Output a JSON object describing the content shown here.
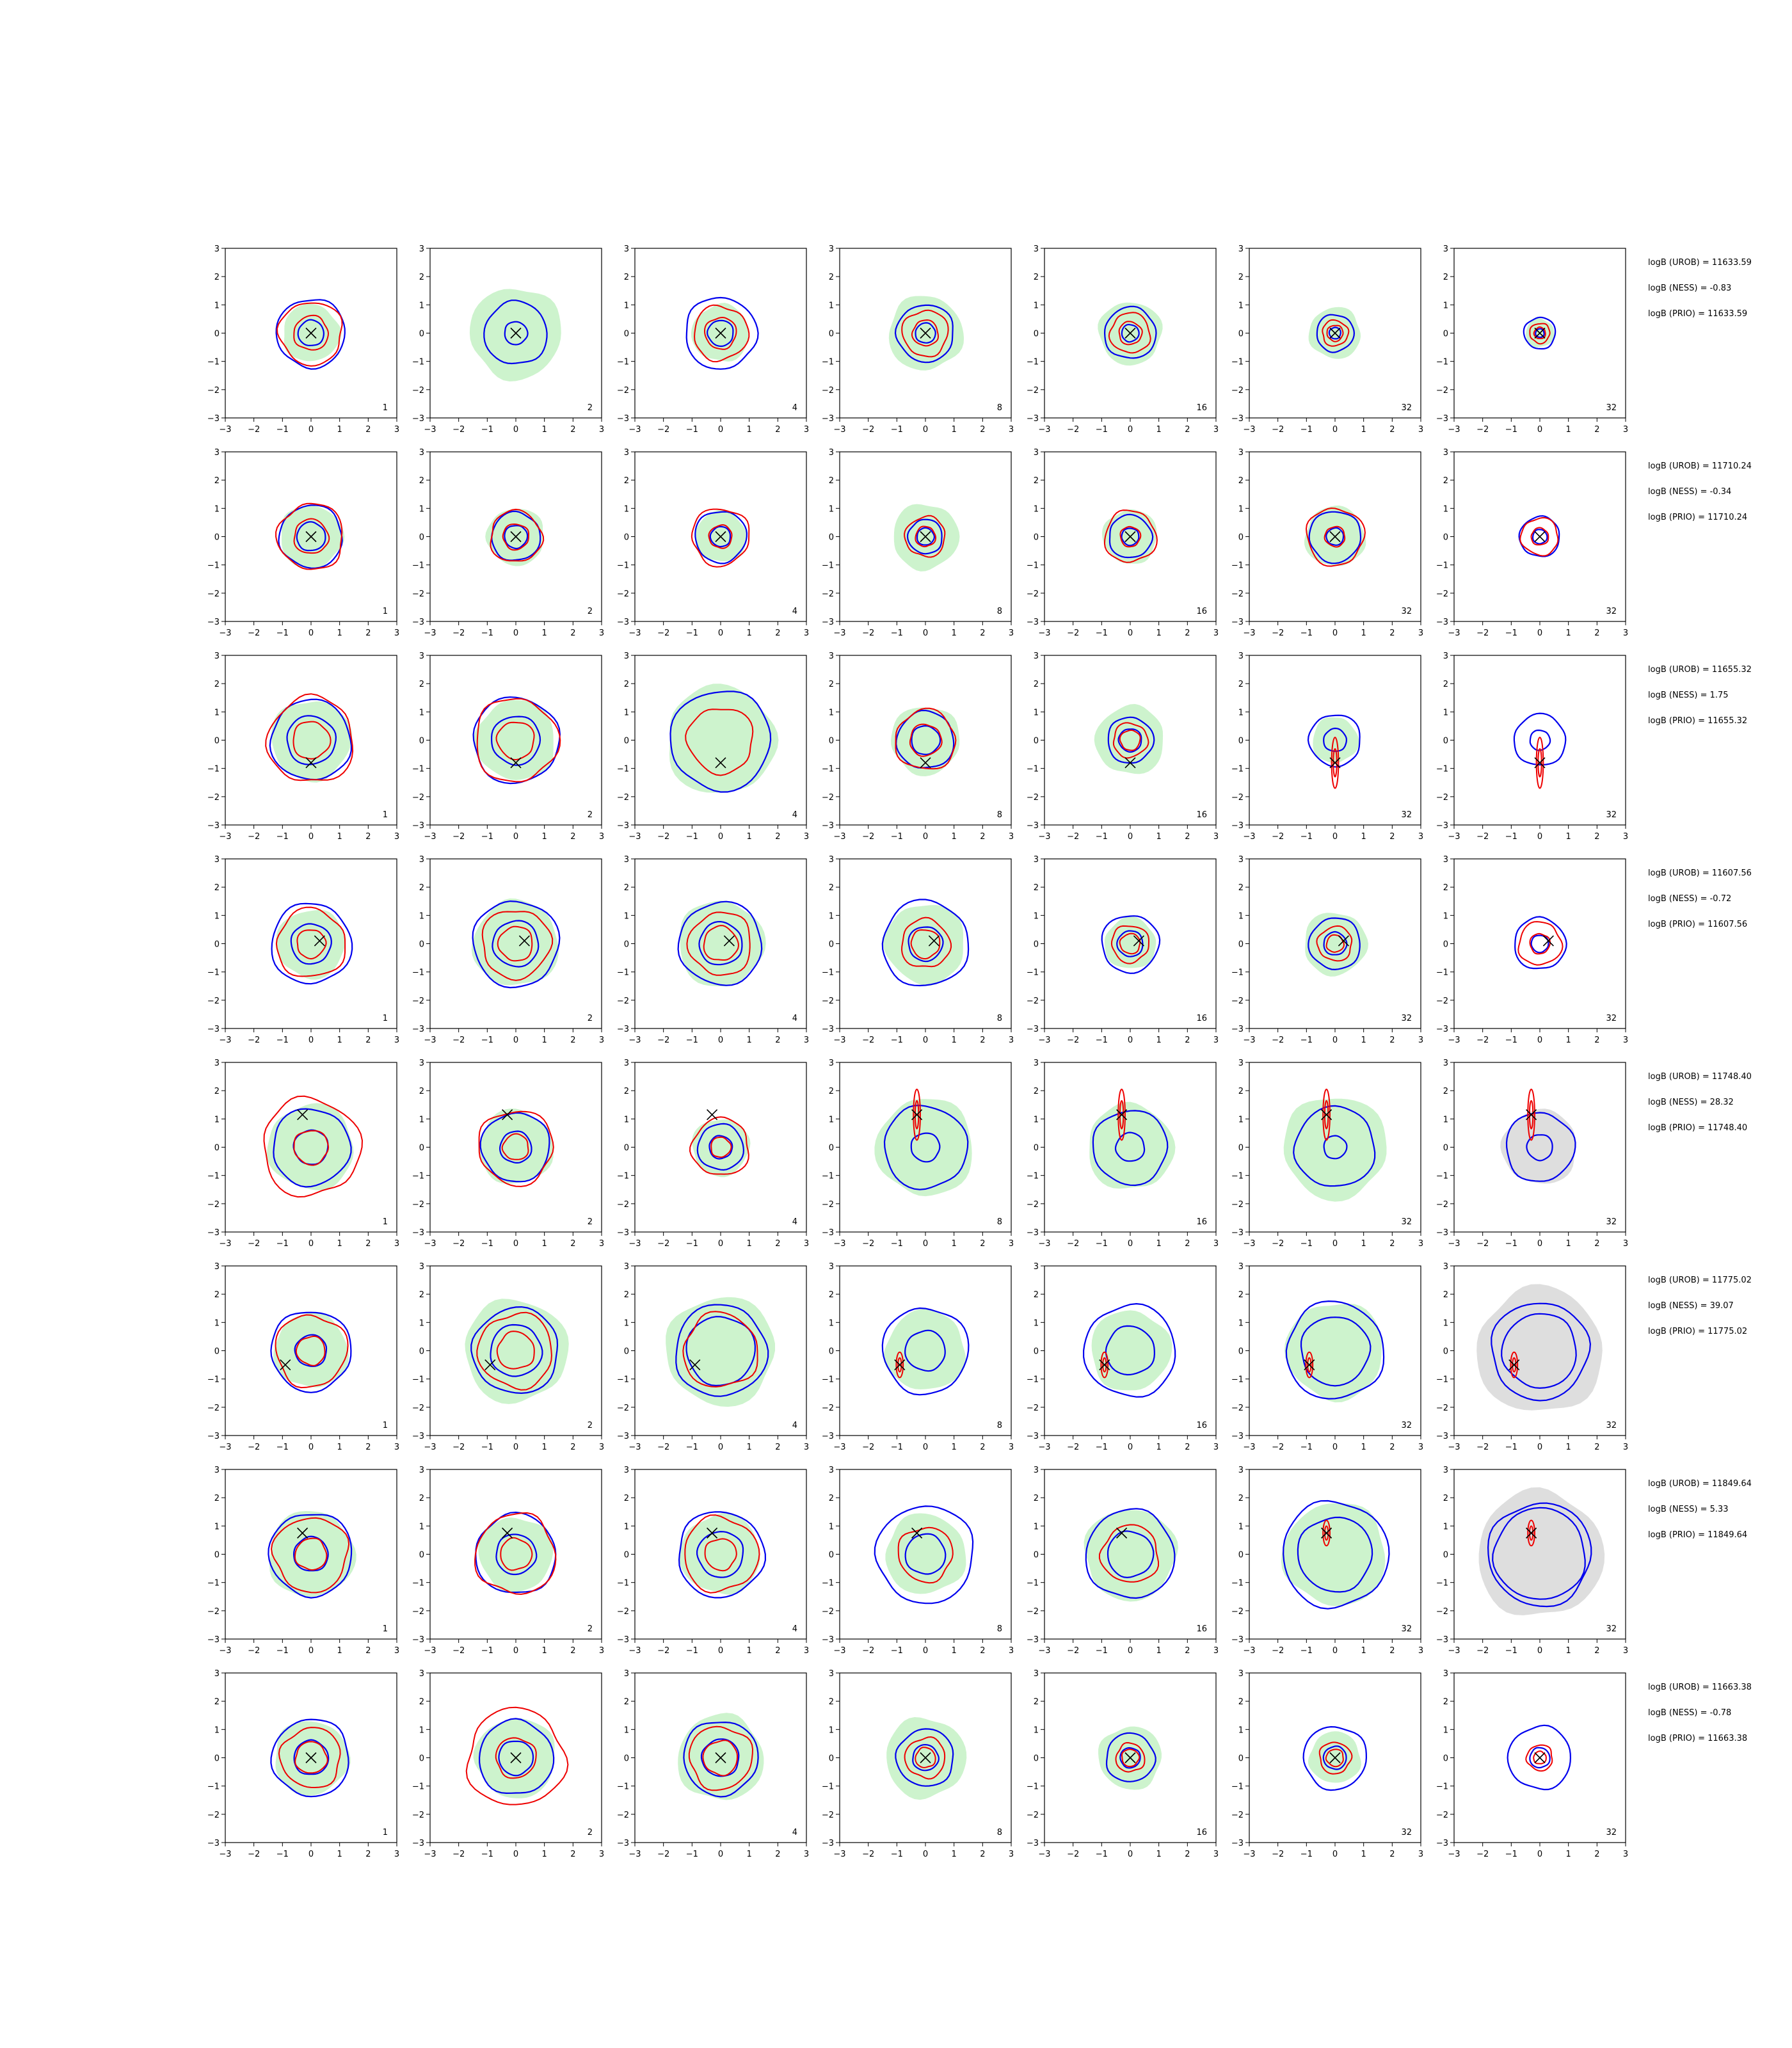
{
  "chart_data": {
    "type": "contour-grid",
    "rows": 8,
    "cols": 7,
    "xlim": [
      -3,
      3
    ],
    "ylim": [
      -3,
      3
    ],
    "ticks": [
      -3,
      -2,
      -1,
      0,
      1,
      2,
      3
    ],
    "tick_labels": [
      "−3",
      "−2",
      "−1",
      "0",
      "1",
      "2",
      "3"
    ],
    "panel_labels": [
      "1",
      "2",
      "4",
      "8",
      "16",
      "32",
      "32"
    ],
    "colors": {
      "fill_green": "#cdf3cd",
      "fill_grey": "#dedede",
      "blue": "#0000ee",
      "red": "#ee0000",
      "marker": "#000000"
    },
    "rows_data": [
      {
        "logb_text": [
          "logB (UROB) = 11633.59",
          "logB (NESS) = -0.83",
          "logB (PRIO) = 11633.59"
        ],
        "marker": [
          0.0,
          0.0
        ],
        "fill_r": [
          1.0,
          1.6,
          1.0,
          1.3,
          1.1,
          0.9,
          0.5
        ],
        "blue_out": [
          1.2,
          1.1,
          1.25,
          1.0,
          0.9,
          0.65,
          0.55
        ],
        "blue_in": [
          0.45,
          0.4,
          0.45,
          0.35,
          0.3,
          0.2,
          0.15
        ],
        "red_out": [
          1.1,
          0.0,
          0.95,
          0.8,
          0.7,
          0.45,
          0.35
        ],
        "red_in": [
          0.6,
          0.0,
          0.55,
          0.45,
          0.4,
          0.28,
          0.2
        ]
      },
      {
        "logb_text": [
          "logB (UROB) = 11710.24",
          "logB (NESS) = -0.34",
          "logB (PRIO) = 11710.24"
        ],
        "marker": [
          0.0,
          0.0
        ],
        "fill_r": [
          1.1,
          1.0,
          0.9,
          1.15,
          0.95,
          1.05,
          0.0
        ],
        "blue_out": [
          1.1,
          0.85,
          0.9,
          0.6,
          0.75,
          0.9,
          0.7
        ],
        "blue_in": [
          0.5,
          0.4,
          0.35,
          0.3,
          0.3,
          0.3,
          0.25
        ],
        "red_out": [
          1.15,
          0.9,
          1.0,
          0.7,
          0.9,
          1.0,
          0.65
        ],
        "red_in": [
          0.6,
          0.45,
          0.4,
          0.35,
          0.35,
          0.35,
          0.3
        ]
      },
      {
        "logb_text": [
          "logB (UROB) = 11655.32",
          "logB (NESS) = 1.75",
          "logB (PRIO) = 11655.32"
        ],
        "marker": [
          0.0,
          -0.8
        ],
        "fill_r": [
          1.4,
          1.4,
          1.9,
          1.2,
          1.2,
          0.8,
          0.0
        ],
        "blue_out": [
          1.4,
          1.5,
          1.75,
          1.0,
          0.8,
          0.9,
          0.9
        ],
        "blue_in": [
          0.85,
          0.85,
          0.0,
          0.5,
          0.4,
          0.4,
          0.35
        ],
        "red_out": [
          1.5,
          1.45,
          1.15,
          1.05,
          0.6,
          0.0,
          0.0
        ],
        "red_in": [
          0.65,
          0.65,
          0.0,
          0.55,
          0.35,
          0.0,
          0.0
        ]
      },
      {
        "logb_text": [
          "logB (UROB) = 11607.56",
          "logB (NESS) = -0.72",
          "logB (PRIO) = 11607.56"
        ],
        "marker": [
          0.3,
          0.1
        ],
        "fill_r": [
          1.2,
          1.5,
          1.5,
          1.4,
          0.9,
          1.1,
          0.0
        ],
        "blue_out": [
          1.4,
          1.5,
          1.45,
          1.5,
          1.0,
          0.9,
          0.9
        ],
        "blue_in": [
          0.7,
          0.8,
          0.75,
          0.6,
          0.45,
          0.4,
          0.3
        ],
        "red_out": [
          1.2,
          1.2,
          1.1,
          0.85,
          0.65,
          0.6,
          0.75
        ],
        "red_in": [
          0.5,
          0.6,
          0.6,
          0.5,
          0.35,
          0.3,
          0.35
        ]
      },
      {
        "logb_text": [
          "logB (UROB) = 11748.40",
          "logB (NESS) = 28.32",
          "logB (PRIO) = 11748.40"
        ],
        "marker": [
          -0.3,
          1.15
        ],
        "fill_r": [
          1.5,
          1.3,
          1.0,
          1.7,
          1.5,
          1.8,
          1.3
        ],
        "blue_out": [
          1.35,
          1.2,
          0.8,
          1.45,
          1.3,
          1.4,
          1.2
        ],
        "blue_in": [
          0.6,
          0.55,
          0.4,
          0.5,
          0.5,
          0.4,
          0.45
        ],
        "red_out": [
          1.7,
          1.3,
          1.0,
          0.0,
          0.0,
          0.0,
          0.0
        ],
        "red_in": [
          0.6,
          0.45,
          0.35,
          0.0,
          0.0,
          0.0,
          0.0
        ]
      },
      {
        "logb_text": [
          "logB (UROB) = 11775.02",
          "logB (NESS) = 39.07",
          "logB (PRIO) = 11775.02"
        ],
        "marker": [
          -0.9,
          -0.5
        ],
        "fill_r": [
          1.3,
          1.8,
          1.9,
          1.4,
          1.4,
          1.7,
          2.2
        ],
        "blue_out": [
          1.4,
          1.5,
          1.6,
          1.5,
          1.6,
          1.7,
          1.7
        ],
        "blue_in": [
          0.55,
          0.9,
          1.2,
          0.7,
          0.85,
          1.2,
          1.3
        ],
        "red_out": [
          1.25,
          1.3,
          1.3,
          0.0,
          0.0,
          0.0,
          0.0
        ],
        "red_in": [
          0.5,
          0.65,
          0.0,
          0.0,
          0.0,
          0.0,
          0.0
        ]
      },
      {
        "logb_text": [
          "logB (UROB) = 11849.64",
          "logB (NESS) = 5.33",
          "logB (PRIO) = 11849.64"
        ],
        "marker": [
          -0.3,
          0.75
        ],
        "fill_r": [
          1.5,
          1.3,
          1.4,
          1.4,
          1.6,
          1.8,
          2.2
        ],
        "blue_out": [
          1.45,
          1.4,
          1.5,
          1.7,
          1.55,
          1.85,
          1.8
        ],
        "blue_in": [
          0.6,
          0.7,
          0.8,
          0.7,
          0.8,
          1.3,
          1.6
        ],
        "red_out": [
          1.3,
          1.4,
          1.3,
          0.95,
          1.0,
          0.0,
          0.0
        ],
        "red_in": [
          0.55,
          0.55,
          0.55,
          0.0,
          0.0,
          0.0,
          0.0
        ]
      },
      {
        "logb_text": [
          "logB (UROB) = 11663.38",
          "logB (NESS) = -0.78",
          "logB (PRIO) = 11663.38"
        ],
        "marker": [
          0.0,
          0.0
        ],
        "fill_r": [
          1.3,
          1.4,
          1.5,
          1.4,
          1.1,
          0.9,
          0.0
        ],
        "blue_out": [
          1.35,
          1.3,
          1.3,
          1.0,
          0.85,
          1.1,
          1.1
        ],
        "blue_in": [
          0.6,
          0.6,
          0.65,
          0.45,
          0.35,
          0.4,
          0.35
        ],
        "red_out": [
          1.05,
          1.7,
          1.1,
          0.7,
          0.5,
          0.55,
          0.45
        ],
        "red_in": [
          0.55,
          0.7,
          0.6,
          0.35,
          0.3,
          0.3,
          0.22
        ]
      }
    ]
  }
}
